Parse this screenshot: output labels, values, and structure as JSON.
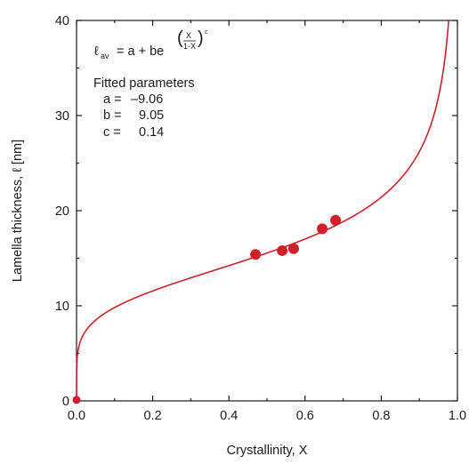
{
  "chart_data": {
    "type": "scatter",
    "xlabel": "Crystallinity, X",
    "ylabel": "Lamella thickness, ℓ [nm]",
    "xlim": [
      0.0,
      1.0
    ],
    "ylim": [
      0,
      40
    ],
    "x_ticks": [
      "0.0",
      "0.2",
      "0.4",
      "0.6",
      "0.8",
      "1.0"
    ],
    "y_ticks": [
      "0",
      "10",
      "20",
      "30",
      "40"
    ],
    "grid": false,
    "series": [
      {
        "type": "scatter",
        "color": "#d0202a",
        "points": [
          {
            "x": 0.0,
            "y": 0.1
          },
          {
            "x": 0.47,
            "y": 15.4
          },
          {
            "x": 0.54,
            "y": 15.8
          },
          {
            "x": 0.57,
            "y": 16.0
          },
          {
            "x": 0.645,
            "y": 18.1
          },
          {
            "x": 0.68,
            "y": 19.0
          }
        ]
      },
      {
        "type": "line",
        "color": "#d0202a",
        "model": "l = a + b*exp((X/(1-X))^c)",
        "params": {
          "a": -9.06,
          "b": 9.05,
          "c": 0.14
        }
      }
    ],
    "annotation": {
      "equation": {
        "lhs_symbol": "ℓ",
        "lhs_subscript": "av",
        "body": "= a + be",
        "exp_numerator": "X",
        "exp_denominator": "1-X",
        "exp_power": "c"
      },
      "heading": "Fitted parameters",
      "params": [
        {
          "label": "a =",
          "value": "–9.06"
        },
        {
          "label": "b =",
          "value": "9.05"
        },
        {
          "label": "c =",
          "value": "0.14"
        }
      ]
    }
  }
}
